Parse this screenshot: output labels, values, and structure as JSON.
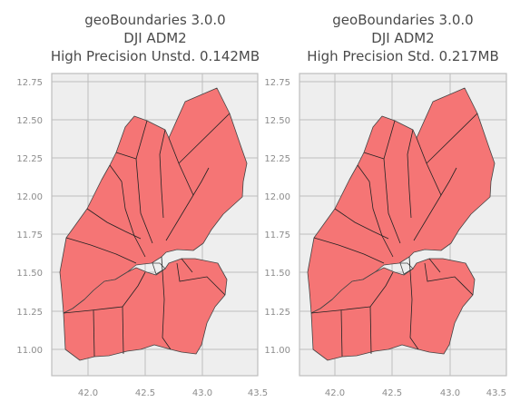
{
  "panels": [
    {
      "title_lines": [
        "geoBoundaries 3.0.0",
        "DJI ADM2",
        "High Precision Unstd. 0.142MB"
      ]
    },
    {
      "title_lines": [
        "geoBoundaries 3.0.0",
        "DJI ADM2",
        "High Precision Std. 0.217MB"
      ]
    }
  ],
  "axes": {
    "x_ticks": [
      "42.0",
      "42.5",
      "43.0",
      "43.5"
    ],
    "y_ticks": [
      "12.75",
      "12.50",
      "12.25",
      "12.00",
      "11.75",
      "11.50",
      "11.25",
      "11.00"
    ]
  },
  "colors": {
    "fill": "#f57575",
    "boundary": "#444444",
    "plot_background": "#eeeeee",
    "grid": "#bdbdbd"
  }
}
